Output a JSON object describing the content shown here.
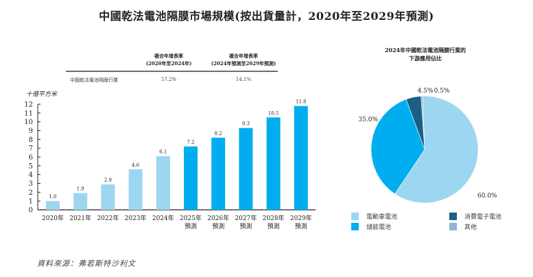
{
  "title": "中國乾法電池隔膜市場規模(按出貨量計，2020年至2029年預測)",
  "cagr_table": {
    "headers": [
      {
        "line1": "複合年增長率",
        "line2": "(2020年至2024年)"
      },
      {
        "line1": "複合年增長率",
        "line2": "(2024年預測至2029年預測)"
      }
    ],
    "row_label": "中國乾法電池隔膜行業",
    "values": [
      "57.2%",
      "14.1%"
    ]
  },
  "source": "資料來源：弗若斯特沙利文",
  "colors": {
    "historical": "#9dd6f0",
    "forecast": "#00aeef",
    "ev": "#9dd6f0",
    "storage": "#00aeef",
    "consumer": "#1b5f84",
    "other": "#8fb3d9"
  },
  "chart_data": [
    {
      "type": "bar",
      "title": "中國乾法電池隔膜市場規模(按出貨量計，2020年至2029年預測)",
      "ylabel": "十億平方米",
      "xlabel": "",
      "ylim": [
        0,
        12
      ],
      "yticks": [
        0,
        1,
        2,
        3,
        4,
        5,
        6,
        7,
        8,
        9,
        10,
        11,
        12
      ],
      "grid": false,
      "categories": [
        {
          "year": "2020年",
          "sub": ""
        },
        {
          "year": "2021年",
          "sub": ""
        },
        {
          "year": "2022年",
          "sub": ""
        },
        {
          "year": "2023年",
          "sub": ""
        },
        {
          "year": "2024年",
          "sub": ""
        },
        {
          "year": "2025年",
          "sub": "預測"
        },
        {
          "year": "2026年",
          "sub": "預測"
        },
        {
          "year": "2027年",
          "sub": "預測"
        },
        {
          "year": "2028年",
          "sub": "預測"
        },
        {
          "year": "2029年",
          "sub": "預測"
        }
      ],
      "values": [
        1.0,
        1.9,
        2.9,
        4.6,
        6.1,
        7.2,
        8.2,
        9.3,
        10.5,
        11.8
      ],
      "labels": [
        "1.0",
        "1.9",
        "2.9",
        "4.6",
        "6.1",
        "7.2",
        "8.2",
        "9.3",
        "10.5",
        "11.8"
      ],
      "forecast": [
        false,
        false,
        false,
        false,
        false,
        true,
        true,
        true,
        true,
        true
      ]
    },
    {
      "type": "pie",
      "title": "2024年中國乾法電池隔膜行業的下游應用佔比",
      "title_lines": [
        "2024年中國乾法電池隔膜行業的",
        "下游應用佔比"
      ],
      "slices": [
        {
          "name": "電動車電池",
          "value": 60.0,
          "label": "60.0%",
          "color_key": "ev"
        },
        {
          "name": "儲能電池",
          "value": 35.0,
          "label": "35.0%",
          "color_key": "storage"
        },
        {
          "name": "消費電子電池",
          "value": 4.5,
          "label": "4.5%",
          "color_key": "consumer"
        },
        {
          "name": "其他",
          "value": 0.5,
          "label": "0.5%",
          "color_key": "other"
        }
      ],
      "legend_position": "bottom"
    }
  ]
}
